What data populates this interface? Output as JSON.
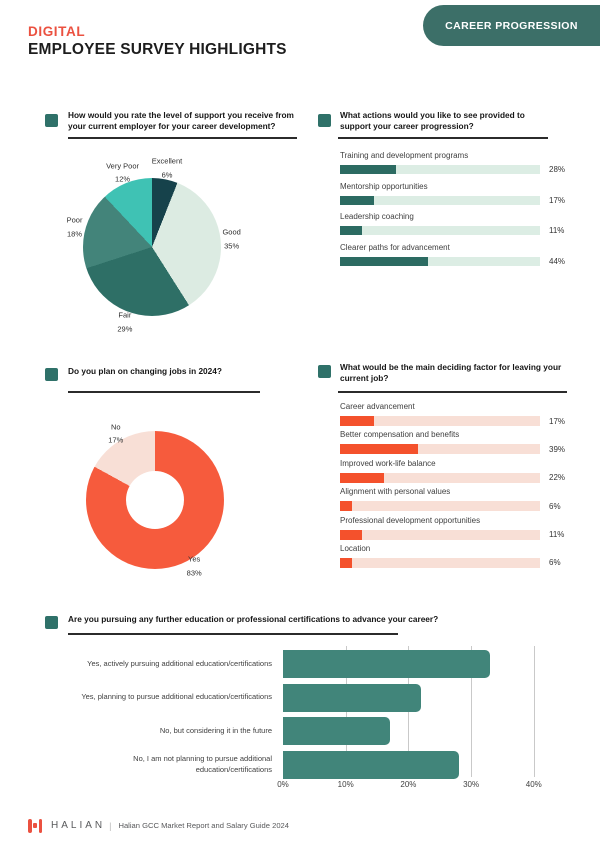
{
  "colors": {
    "accent": "#EB5140",
    "ink": "#1D1D1D",
    "label": "#3F3F3F",
    "gray": "#58595B",
    "teal": "#2F7169",
    "badge": "#3C6F68",
    "grid": "#C9C9C9"
  },
  "header": {
    "kicker": "DIGITAL",
    "title": "EMPLOYEE SURVEY HIGHLIGHTS",
    "badge": "CAREER PROGRESSION"
  },
  "chart_data": [
    {
      "id": "support",
      "type": "pie",
      "title": "How would you rate the level of support you receive from your current employer for your career development?",
      "legend_position": "around",
      "slices": [
        {
          "label": "Excellent",
          "value": 6,
          "color": "#16424B"
        },
        {
          "label": "Good",
          "value": 35,
          "color": "#DCEBE2"
        },
        {
          "label": "Fair",
          "value": 29,
          "color": "#2E6F66"
        },
        {
          "label": "Poor",
          "value": 18,
          "color": "#43847A"
        },
        {
          "label": "Very Poor",
          "value": 12,
          "color": "#3FC2B4"
        }
      ]
    },
    {
      "id": "actions",
      "type": "bar",
      "title": "What actions would you like to see provided to support your career progression?",
      "xlim": [
        0,
        100
      ],
      "fill_color": "#2C6B62",
      "track_color": "#DCEDE4",
      "items": [
        {
          "label": "Training and development programs",
          "value": 28
        },
        {
          "label": "Mentorship opportunities",
          "value": 17
        },
        {
          "label": "Leadership coaching",
          "value": 11
        },
        {
          "label": "Clearer paths for advancement",
          "value": 44
        }
      ]
    },
    {
      "id": "jobs",
      "type": "pie",
      "title": "Do you plan on changing jobs in 2024?",
      "hole": true,
      "slices": [
        {
          "label": "Yes",
          "value": 83,
          "color": "#F65B3D"
        },
        {
          "label": "No",
          "value": 17,
          "color": "#F8DFD6"
        }
      ]
    },
    {
      "id": "factors",
      "type": "bar",
      "title": "What would be the main deciding factor for leaving your current job?",
      "xlim": [
        0,
        100
      ],
      "fill_color": "#F4512C",
      "track_color": "#F8DFD6",
      "items": [
        {
          "label": "Career advancement",
          "value": 17
        },
        {
          "label": "Better compensation and benefits",
          "value": 39
        },
        {
          "label": "Improved work-life balance",
          "value": 22
        },
        {
          "label": "Alignment with personal values",
          "value": 6
        },
        {
          "label": "Professional development opportunities",
          "value": 11
        },
        {
          "label": "Location",
          "value": 6
        }
      ]
    },
    {
      "id": "education",
      "type": "bar",
      "title": "Are you pursuing any further education or professional certifications to advance your career?",
      "orientation": "horizontal",
      "grid": true,
      "xlim": [
        0,
        40
      ],
      "xticks": [
        0,
        10,
        20,
        30,
        40
      ],
      "fill_color": "#41857A",
      "categories": [
        "Yes, actively pursuing additional education/certifications",
        "Yes, planning to pursue additional education/certifications",
        "No, but considering it in the future",
        "No, I am not planning to pursue additional education/certifications"
      ],
      "values": [
        33,
        22,
        17,
        28
      ]
    }
  ],
  "footer": {
    "brand": "HALIAN",
    "separator": "|",
    "caption": "Halian GCC Market Report and Salary Guide 2024"
  }
}
